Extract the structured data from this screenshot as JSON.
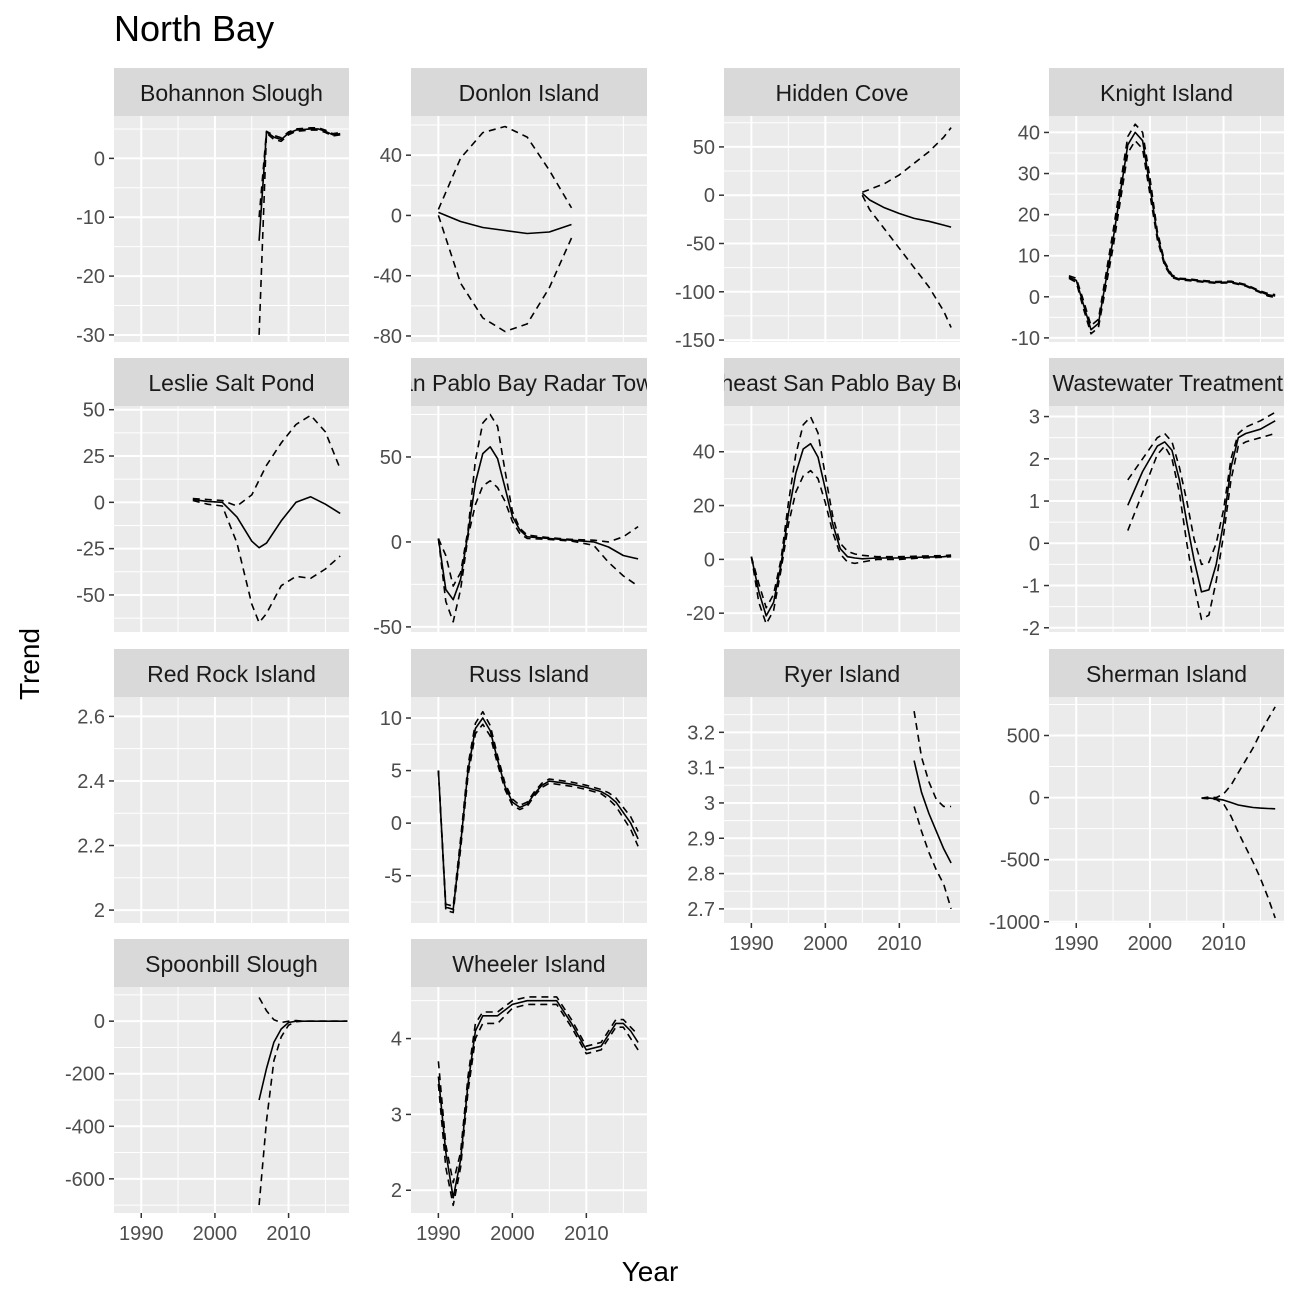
{
  "title": "North Bay",
  "chart_data": {
    "type": "line",
    "title": "North Bay",
    "xlabel": "Year",
    "ylabel": "Trend",
    "series_styles": {
      "trend": "solid",
      "lower": "dashed",
      "upper": "dashed"
    },
    "colors": {
      "panel_bg": "#ebebeb",
      "strip_bg": "#d9d9d9",
      "grid": "#ffffff",
      "line": "#000000",
      "tick_text": "#4d4d4d"
    },
    "panels": [
      {
        "name": "Bohannon Slough",
        "xlim": [
          1986.3,
          2018.2
        ],
        "ylim": [
          -31.2,
          7.2
        ],
        "xticks": [],
        "yticks": [
          0,
          -10,
          -20,
          -30
        ],
        "years": [
          2006,
          2007,
          2008,
          2009,
          2010,
          2011,
          2012,
          2013,
          2014,
          2015,
          2016,
          2017
        ],
        "trend": [
          -14,
          4.5,
          3.6,
          3.2,
          4.3,
          4.8,
          4.9,
          5.0,
          5.0,
          4.6,
          4.0,
          4.2
        ],
        "lower": [
          -30,
          4.3,
          3.2,
          2.9,
          4.0,
          4.6,
          4.7,
          4.8,
          4.8,
          4.4,
          3.8,
          4.0
        ],
        "upper": [
          -10,
          4.6,
          3.9,
          3.5,
          4.5,
          5.0,
          5.1,
          5.2,
          5.2,
          4.8,
          4.2,
          4.4
        ]
      },
      {
        "name": "Donlon Island",
        "xlim": [
          1986.3,
          2018.2
        ],
        "ylim": [
          -84,
          66
        ],
        "xticks": [],
        "yticks": [
          40,
          0,
          -40,
          -80
        ],
        "years": [
          1990,
          1993,
          1996,
          1999,
          2002,
          2005,
          2008
        ],
        "trend": [
          2,
          -4,
          -8,
          -10,
          -12,
          -11,
          -6
        ],
        "lower": [
          0,
          -45,
          -68,
          -77,
          -72,
          -48,
          -15
        ],
        "upper": [
          4,
          38,
          55,
          59,
          52,
          30,
          5
        ]
      },
      {
        "name": "Hidden Cove",
        "xlim": [
          1986.3,
          2018.2
        ],
        "ylim": [
          -152,
          82
        ],
        "xticks": [],
        "yticks": [
          50,
          0,
          -50,
          -100,
          -150
        ],
        "years": [
          2005,
          2006,
          2008,
          2010,
          2012,
          2014,
          2016,
          2017
        ],
        "trend": [
          2,
          -5,
          -13,
          -19,
          -24,
          -27,
          -31,
          -33
        ],
        "lower": [
          0,
          -15,
          -35,
          -55,
          -75,
          -95,
          -120,
          -137
        ],
        "upper": [
          3,
          6,
          12,
          21,
          33,
          45,
          60,
          70
        ]
      },
      {
        "name": "Knight Island",
        "xlim": [
          1986.3,
          2018.2
        ],
        "ylim": [
          -11,
          44
        ],
        "xticks": [],
        "yticks": [
          40,
          30,
          20,
          10,
          0,
          -10
        ],
        "years": [
          1989,
          1990,
          1991,
          1992,
          1993,
          1995,
          1997,
          1998,
          1999,
          2000,
          2001,
          2002,
          2003,
          2004,
          2005,
          2007,
          2009,
          2011,
          2013,
          2015,
          2016,
          2017
        ],
        "trend": [
          4.8,
          4.0,
          -2,
          -8,
          -6.5,
          14,
          37,
          40,
          38,
          27,
          15,
          8,
          5,
          4.3,
          4.2,
          3.8,
          3.5,
          3.6,
          2.8,
          1.2,
          0.5,
          0.2
        ],
        "lower": [
          4.5,
          3.5,
          -3,
          -9,
          -7.5,
          12,
          35,
          38,
          36,
          25,
          14,
          7.5,
          4.7,
          4.1,
          4.0,
          3.6,
          3.3,
          3.4,
          2.6,
          1.0,
          0.2,
          -0.2
        ],
        "upper": [
          5.1,
          4.5,
          -1,
          -7,
          -5.5,
          16,
          39,
          42,
          40,
          29,
          16,
          8.5,
          5.3,
          4.5,
          4.4,
          4.0,
          3.7,
          3.8,
          3.0,
          1.4,
          0.8,
          0.5
        ]
      },
      {
        "name": "Leslie Salt Pond",
        "xlim": [
          1986.3,
          2018.2
        ],
        "ylim": [
          -70,
          52
        ],
        "xticks": [],
        "yticks": [
          50,
          25,
          0,
          -25,
          -50
        ],
        "years": [
          1997,
          1999,
          2001,
          2003,
          2005,
          2006,
          2007,
          2009,
          2011,
          2013,
          2015,
          2017
        ],
        "trend": [
          1.5,
          0.5,
          0,
          -8,
          -21,
          -24.5,
          -22,
          -10,
          0,
          3,
          -1,
          -6
        ],
        "lower": [
          1,
          -1,
          -2,
          -22,
          -55,
          -65,
          -60,
          -45,
          -40,
          -41,
          -36,
          -29
        ],
        "upper": [
          2,
          1.5,
          1,
          -2,
          4,
          12,
          20,
          32,
          42,
          47,
          38,
          18
        ]
      },
      {
        "name": "San Pablo Bay Radar Tower",
        "xlim": [
          1986.3,
          2018.2
        ],
        "ylim": [
          -53,
          80
        ],
        "xticks": [],
        "yticks": [
          50,
          0,
          -50
        ],
        "years": [
          1990,
          1991,
          1992,
          1993,
          1994,
          1995,
          1996,
          1997,
          1998,
          1999,
          2000,
          2001,
          2002,
          2005,
          2008,
          2011,
          2013,
          2015,
          2017
        ],
        "trend": [
          2,
          -28,
          -34,
          -22,
          5,
          35,
          52,
          56,
          49,
          32,
          15,
          7,
          3,
          2,
          1,
          0,
          -3,
          -8,
          -10
        ],
        "lower": [
          2,
          -35,
          -47,
          -28,
          3,
          22,
          33,
          36,
          32,
          24,
          12,
          5,
          2,
          1.5,
          0.5,
          -2,
          -12,
          -20,
          -26
        ],
        "upper": [
          2,
          -8,
          -26,
          -18,
          7,
          48,
          70,
          75,
          68,
          42,
          18,
          8,
          4,
          2.5,
          1.5,
          1,
          0,
          3,
          9
        ]
      },
      {
        "name": "Northeast San Pablo Bay Beach",
        "xlim": [
          1986.3,
          2018.2
        ],
        "ylim": [
          -27,
          57
        ],
        "xticks": [],
        "yticks": [
          40,
          20,
          0,
          -20
        ],
        "years": [
          1990,
          1991,
          1992,
          1993,
          1994,
          1995,
          1996,
          1997,
          1998,
          1999,
          2000,
          2001,
          2002,
          2003,
          2004,
          2005,
          2007,
          2010,
          2013,
          2016,
          2017
        ],
        "trend": [
          1,
          -12,
          -21,
          -16,
          -2,
          17,
          32,
          41,
          43,
          38,
          26,
          13,
          4,
          1,
          0.5,
          0.2,
          0.5,
          0.5,
          0.8,
          1,
          1.3
        ],
        "lower": [
          1,
          -16,
          -24,
          -19,
          -4,
          13,
          25,
          31,
          33,
          30,
          21,
          10,
          2,
          -1,
          -1.5,
          -1,
          0,
          0,
          0.5,
          0.8,
          1
        ],
        "upper": [
          1,
          -9,
          -18,
          -13,
          0,
          21,
          39,
          50,
          53,
          47,
          31,
          16,
          6,
          3,
          2,
          1.5,
          1,
          1,
          1.2,
          1.4,
          1.6
        ]
      },
      {
        "name": "Napa Wastewater Treatment Plant",
        "xlim": [
          1986.3,
          2018.2
        ],
        "ylim": [
          -2.1,
          3.25
        ],
        "xticks": [],
        "yticks": [
          3,
          2,
          1,
          0,
          -1,
          -2
        ],
        "years": [
          1997,
          1999,
          2001,
          2002,
          2003,
          2004,
          2005,
          2006,
          2007,
          2008,
          2009,
          2010,
          2011,
          2012,
          2013,
          2015,
          2017
        ],
        "trend": [
          0.9,
          1.7,
          2.3,
          2.4,
          2.2,
          1.5,
          0.5,
          -0.4,
          -1.15,
          -1.1,
          -0.5,
          0.5,
          1.8,
          2.5,
          2.6,
          2.7,
          2.9
        ],
        "lower": [
          0.3,
          1.2,
          2.1,
          2.3,
          2.0,
          1.2,
          0.0,
          -1.0,
          -1.8,
          -1.7,
          -0.9,
          0.2,
          1.5,
          2.3,
          2.4,
          2.5,
          2.6
        ],
        "upper": [
          1.5,
          2.0,
          2.5,
          2.6,
          2.4,
          1.8,
          1.0,
          0.1,
          -0.5,
          -0.45,
          0.0,
          0.8,
          2.0,
          2.6,
          2.75,
          2.9,
          3.1
        ]
      },
      {
        "name": "Red Rock Island",
        "xlim": [
          1986.3,
          2018.2
        ],
        "ylim": [
          1.96,
          2.66
        ],
        "xticks": [],
        "yticks": [
          2.6,
          2.4,
          2.2,
          2.0
        ],
        "years": [],
        "trend": [],
        "lower": [],
        "upper": []
      },
      {
        "name": "Russ Island",
        "xlim": [
          1986.3,
          2018.2
        ],
        "ylim": [
          -9.5,
          12
        ],
        "xticks": [],
        "yticks": [
          10,
          5,
          0,
          -5
        ],
        "years": [
          1990,
          1991,
          1992,
          1993,
          1994,
          1995,
          1996,
          1997,
          1998,
          1999,
          2000,
          2001,
          2002,
          2003,
          2004,
          2005,
          2006,
          2008,
          2010,
          2012,
          2013,
          2014,
          2015,
          2016,
          2017
        ],
        "trend": [
          5,
          -8,
          -8.2,
          -2,
          5,
          9,
          10,
          8.8,
          6,
          3.5,
          2,
          1.5,
          1.8,
          2.8,
          3.6,
          4,
          3.9,
          3.7,
          3.4,
          3.0,
          2.6,
          2,
          1,
          0,
          -1.5
        ],
        "lower": [
          5,
          -8.3,
          -8.5,
          -2.5,
          4.5,
          8.5,
          9.4,
          8.3,
          5.6,
          3.2,
          1.7,
          1.3,
          1.6,
          2.6,
          3.4,
          3.8,
          3.7,
          3.5,
          3.2,
          2.8,
          2.3,
          1.6,
          0.5,
          -0.6,
          -2.2
        ],
        "upper": [
          5,
          -7.7,
          -7.9,
          -1.5,
          5.5,
          9.5,
          10.6,
          9.3,
          6.4,
          3.8,
          2.3,
          1.7,
          2.0,
          3.0,
          3.8,
          4.2,
          4.1,
          3.9,
          3.6,
          3.2,
          2.9,
          2.4,
          1.5,
          0.6,
          -0.8
        ]
      },
      {
        "name": "Ryer Island",
        "xlim": [
          1986.3,
          2018.2
        ],
        "ylim": [
          2.66,
          3.3
        ],
        "xticks": [
          1990,
          2000,
          2010
        ],
        "yticks": [
          3.2,
          3.1,
          3.0,
          2.9,
          2.8,
          2.7
        ],
        "years": [
          2012,
          2013,
          2014,
          2015,
          2016,
          2017
        ],
        "trend": [
          3.12,
          3.03,
          2.97,
          2.92,
          2.87,
          2.83
        ],
        "lower": [
          2.99,
          2.92,
          2.86,
          2.81,
          2.77,
          2.7
        ],
        "upper": [
          3.26,
          3.13,
          3.06,
          3.01,
          2.99,
          2.99
        ]
      },
      {
        "name": "Sherman Island",
        "xlim": [
          1986.3,
          2018.2
        ],
        "ylim": [
          -1010,
          810
        ],
        "xticks": [
          1990,
          2000,
          2010
        ],
        "yticks": [
          500,
          0,
          -500,
          -1000
        ],
        "years": [
          2007,
          2008,
          2009,
          2010,
          2011,
          2012,
          2013,
          2014,
          2015,
          2016,
          2017
        ],
        "trend": [
          -5,
          -4,
          -10,
          -20,
          -40,
          -60,
          -70,
          -80,
          -85,
          -88,
          -90
        ],
        "lower": [
          -5,
          -10,
          -15,
          -50,
          -150,
          -280,
          -400,
          -520,
          -650,
          -800,
          -970
        ],
        "upper": [
          -5,
          5,
          0,
          30,
          100,
          200,
          300,
          400,
          520,
          630,
          730
        ]
      },
      {
        "name": "Spoonbill Slough",
        "xlim": [
          1986.3,
          2018.2
        ],
        "ylim": [
          -730,
          130
        ],
        "xticks": [
          1990,
          2000,
          2010
        ],
        "yticks": [
          0,
          -200,
          -400,
          -600
        ],
        "years": [
          2006,
          2007,
          2008,
          2009,
          2010,
          2011,
          2012,
          2014,
          2016,
          2018
        ],
        "trend": [
          -300,
          -180,
          -80,
          -30,
          -5,
          0,
          0,
          0,
          0,
          0
        ],
        "lower": [
          -700,
          -380,
          -150,
          -60,
          -15,
          -2,
          0,
          0,
          0,
          0
        ],
        "upper": [
          90,
          40,
          5,
          -5,
          0,
          2,
          0,
          0,
          0,
          0
        ]
      },
      {
        "name": "Wheeler Island",
        "xlim": [
          1986.3,
          2018.2
        ],
        "ylim": [
          1.7,
          4.68
        ],
        "xticks": [
          1990,
          2000,
          2010
        ],
        "yticks": [
          4,
          3,
          2
        ],
        "years": [
          1990,
          1991,
          1992,
          1993,
          1994,
          1995,
          1996,
          1998,
          2000,
          2002,
          2004,
          2006,
          2008,
          2010,
          2012,
          2014,
          2015,
          2016,
          2017
        ],
        "trend": [
          3.5,
          2.5,
          1.9,
          2.4,
          3.4,
          4.1,
          4.3,
          4.3,
          4.45,
          4.5,
          4.5,
          4.5,
          4.2,
          3.85,
          3.9,
          4.2,
          4.2,
          4.1,
          3.95
        ],
        "lower": [
          3.4,
          2.3,
          1.8,
          2.3,
          3.3,
          4.0,
          4.2,
          4.2,
          4.4,
          4.45,
          4.45,
          4.45,
          4.15,
          3.8,
          3.85,
          4.15,
          4.15,
          4.0,
          3.85
        ],
        "upper": [
          3.7,
          2.6,
          2.1,
          2.5,
          3.5,
          4.2,
          4.35,
          4.35,
          4.5,
          4.55,
          4.55,
          4.55,
          4.25,
          3.9,
          3.95,
          4.25,
          4.25,
          4.15,
          4.05
        ]
      }
    ]
  }
}
